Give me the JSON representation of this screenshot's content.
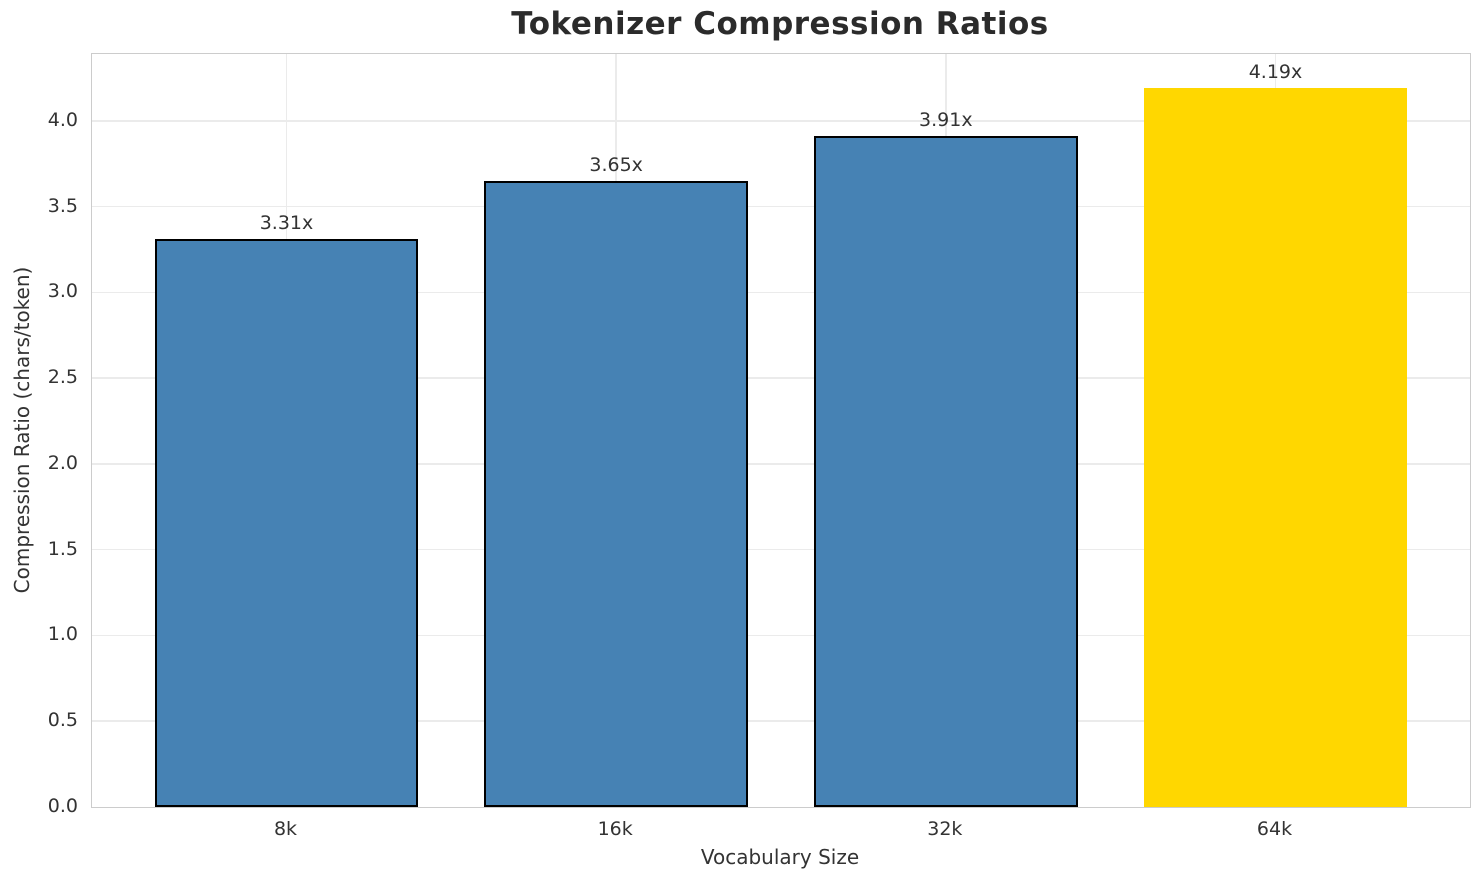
{
  "chart_data": {
    "type": "bar",
    "title": "Tokenizer Compression Ratios",
    "xlabel": "Vocabulary Size",
    "ylabel": "Compression Ratio (chars/token)",
    "categories": [
      "8k",
      "16k",
      "32k",
      "64k"
    ],
    "values": [
      3.31,
      3.65,
      3.91,
      4.19
    ],
    "bar_labels": [
      "3.31x",
      "3.65x",
      "3.91x",
      "4.19x"
    ],
    "bar_colors": [
      "#4682B4",
      "#4682B4",
      "#4682B4",
      "#FFD700"
    ],
    "bar_edge_colors": [
      "#000000",
      "#000000",
      "#000000",
      "none"
    ],
    "ylim": [
      0,
      4.39
    ],
    "xlim": [
      -0.59,
      3.59
    ],
    "bar_width": 0.8,
    "yticks": [
      0.0,
      0.5,
      1.0,
      1.5,
      2.0,
      2.5,
      3.0,
      3.5,
      4.0
    ],
    "ytick_labels": [
      "0.0",
      "0.5",
      "1.0",
      "1.5",
      "2.0",
      "2.5",
      "3.0",
      "3.5",
      "4.0"
    ],
    "grid": true,
    "legend": "none",
    "colors": {
      "bar": "#4682B4",
      "highlight": "#FFD700",
      "edge": "#000000",
      "gridline": "#ebebeb",
      "spine": "#cccccc",
      "text": "#333333",
      "title_text": "#2b2b2b"
    }
  }
}
